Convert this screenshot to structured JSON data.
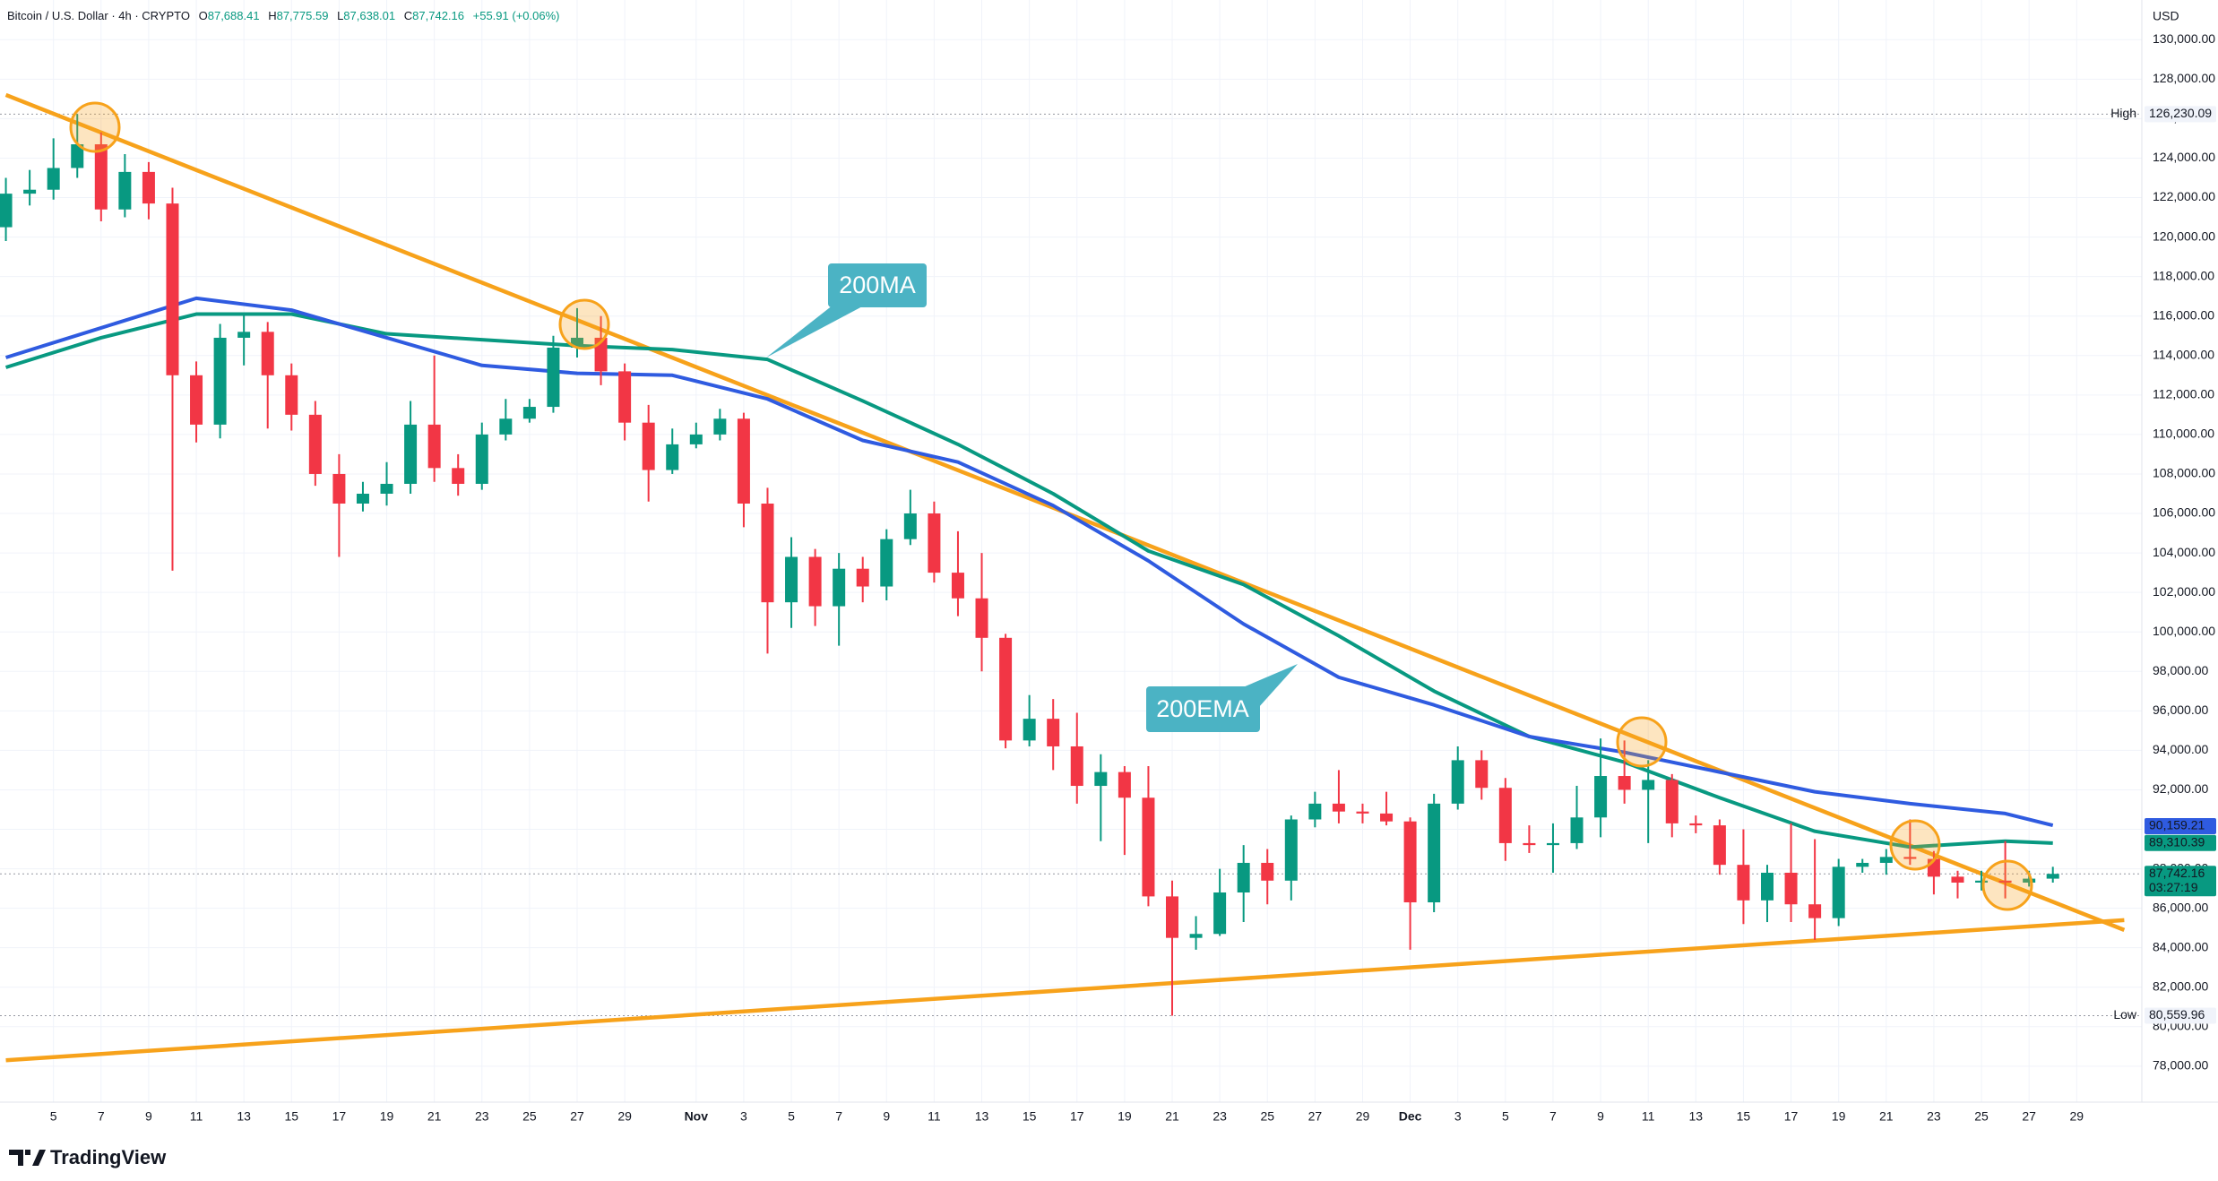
{
  "chart_data": {
    "type": "candlestick",
    "title": "Bitcoin / U.S. Dollar · 4h · CRYPTO",
    "ohlc_legend": [
      {
        "key": "O",
        "label": "87,688.41"
      },
      {
        "key": "H",
        "label": "87,775.59"
      },
      {
        "key": "L",
        "label": "87,638.01"
      },
      {
        "key": "C",
        "label": "87,742.16"
      }
    ],
    "change": "+55.91 (+0.06%)",
    "currency": "USD",
    "up_color": "#089981",
    "down_color": "#f23645",
    "grid": true,
    "xlim": [
      "Oct 2",
      "Dec 31"
    ],
    "ylim": [
      76360,
      132010
    ],
    "x": [
      "Oct 3",
      "Oct 4",
      "Oct 5",
      "Oct 6",
      "Oct 7",
      "Oct 8",
      "Oct 9",
      "Oct 10",
      "Oct 11",
      "Oct 12",
      "Oct 13",
      "Oct 14",
      "Oct 15",
      "Oct 16",
      "Oct 17",
      "Oct 18",
      "Oct 19",
      "Oct 20",
      "Oct 21",
      "Oct 22",
      "Oct 23",
      "Oct 24",
      "Oct 25",
      "Oct 26",
      "Oct 27",
      "Oct 28",
      "Oct 29",
      "Oct 30",
      "Oct 31",
      "Nov 1",
      "Nov 2",
      "Nov 3",
      "Nov 4",
      "Nov 5",
      "Nov 6",
      "Nov 7",
      "Nov 8",
      "Nov 9",
      "Nov 10",
      "Nov 11",
      "Nov 12",
      "Nov 13",
      "Nov 14",
      "Nov 15",
      "Nov 16",
      "Nov 17",
      "Nov 18",
      "Nov 19",
      "Nov 20",
      "Nov 21",
      "Nov 22",
      "Nov 23",
      "Nov 24",
      "Nov 25",
      "Nov 26",
      "Nov 27",
      "Nov 28",
      "Nov 29",
      "Nov 30",
      "Dec 1",
      "Dec 2",
      "Dec 3",
      "Dec 4",
      "Dec 5",
      "Dec 6",
      "Dec 7",
      "Dec 8",
      "Dec 9",
      "Dec 10",
      "Dec 11",
      "Dec 12",
      "Dec 13",
      "Dec 14",
      "Dec 15",
      "Dec 16",
      "Dec 17",
      "Dec 18",
      "Dec 19",
      "Dec 20",
      "Dec 21",
      "Dec 22",
      "Dec 23",
      "Dec 24",
      "Dec 25",
      "Dec 26",
      "Dec 27",
      "Dec 28"
    ],
    "open": [
      120500,
      122200,
      122400,
      123500,
      124700,
      121400,
      123300,
      121700,
      113000,
      110500,
      114900,
      115200,
      113000,
      111000,
      108000,
      106500,
      107000,
      107500,
      110500,
      108300,
      107500,
      110000,
      110800,
      111400,
      114400,
      114900,
      113200,
      110600,
      108200,
      109500,
      110000,
      110800,
      106500,
      101500,
      103800,
      101300,
      103200,
      102300,
      104700,
      106000,
      103000,
      101700,
      99700,
      94500,
      95600,
      94200,
      92200,
      92900,
      91600,
      86600,
      84500,
      84700,
      86800,
      88300,
      87400,
      90500,
      91300,
      90900,
      90800,
      90400,
      86300,
      91300,
      93500,
      92100,
      89300,
      89200,
      89300,
      90600,
      92700,
      92000,
      92500,
      90300,
      90200,
      88200,
      86400,
      87800,
      86200,
      85500,
      88100,
      88300,
      88600,
      88500,
      87600,
      87300,
      87400,
      87300,
      87500
    ],
    "high": [
      123000,
      123400,
      125000,
      126230.09,
      125300,
      124200,
      123800,
      122500,
      113700,
      115600,
      116100,
      115700,
      113600,
      111700,
      109000,
      107600,
      108600,
      111700,
      114000,
      109000,
      110600,
      111800,
      111800,
      115000,
      116400,
      116000,
      113600,
      111500,
      110300,
      110600,
      111300,
      111100,
      107300,
      104800,
      104200,
      104000,
      103800,
      105200,
      107200,
      106600,
      105100,
      104000,
      99900,
      96800,
      96600,
      95900,
      93800,
      93200,
      93200,
      87400,
      85600,
      88000,
      89200,
      89000,
      90700,
      91900,
      93000,
      91300,
      91900,
      90600,
      91800,
      94200,
      94000,
      92600,
      90200,
      90300,
      92200,
      94600,
      94500,
      93500,
      92800,
      90700,
      90500,
      90000,
      88200,
      90300,
      89500,
      88500,
      88500,
      89000,
      90500,
      88900,
      87900,
      87900,
      89400,
      87900,
      88100
    ],
    "low": [
      119800,
      121600,
      121900,
      123000,
      120800,
      121000,
      120900,
      103100,
      109600,
      109800,
      113500,
      110300,
      110200,
      107400,
      103800,
      106100,
      106400,
      107000,
      107600,
      106900,
      107200,
      109700,
      110600,
      111100,
      113900,
      112500,
      109700,
      106600,
      108000,
      109300,
      109700,
      105300,
      98900,
      100200,
      100300,
      99300,
      101500,
      101600,
      104400,
      102500,
      100800,
      98000,
      94100,
      94200,
      93000,
      91300,
      89400,
      88700,
      86100,
      80559.96,
      83900,
      84600,
      85300,
      86200,
      86400,
      90100,
      90300,
      90300,
      90200,
      83900,
      85800,
      91000,
      91500,
      88400,
      88800,
      87800,
      89000,
      89600,
      91300,
      89300,
      89600,
      89800,
      87700,
      85200,
      85300,
      85300,
      84400,
      85100,
      87800,
      87700,
      88200,
      86700,
      86500,
      86900,
      86500,
      87100,
      87300
    ],
    "close": [
      122200,
      122400,
      123500,
      124700,
      121400,
      123300,
      121700,
      113000,
      110500,
      114900,
      115200,
      113000,
      111000,
      108000,
      106500,
      107000,
      107500,
      110500,
      108300,
      107500,
      110000,
      110800,
      111400,
      114400,
      114900,
      113200,
      110600,
      108200,
      109500,
      110000,
      110800,
      106500,
      101500,
      103800,
      101300,
      103200,
      102300,
      104700,
      106000,
      103000,
      101700,
      99700,
      94500,
      95600,
      94200,
      92200,
      92900,
      91600,
      86600,
      84500,
      84700,
      86800,
      88300,
      87400,
      90500,
      91300,
      90900,
      90800,
      90400,
      86300,
      91300,
      93500,
      92100,
      89300,
      89200,
      89300,
      90600,
      92700,
      92000,
      92500,
      90300,
      90200,
      88200,
      86400,
      87800,
      86200,
      85500,
      88100,
      88300,
      88600,
      88500,
      87600,
      87300,
      87400,
      87300,
      87500,
      87742.16
    ],
    "series": [
      {
        "name": "200MA",
        "color": "#089981",
        "x": [
          "Oct 3",
          "Oct 7",
          "Oct 11",
          "Oct 15",
          "Oct 19",
          "Oct 23",
          "Oct 27",
          "Oct 31",
          "Nov 4",
          "Nov 8",
          "Nov 12",
          "Nov 16",
          "Nov 20",
          "Nov 24",
          "Nov 28",
          "Dec 2",
          "Dec 6",
          "Dec 10",
          "Dec 14",
          "Dec 18",
          "Dec 22",
          "Dec 26",
          "Dec 28"
        ],
        "values": [
          113400,
          114900,
          116100,
          116100,
          115100,
          114800,
          114500,
          114300,
          113800,
          111700,
          109500,
          107000,
          104100,
          102400,
          99800,
          97000,
          94700,
          93400,
          91600,
          89900,
          89100,
          89400,
          89300
        ],
        "last_label": {
          "value": 89310.39,
          "label": "89,310.39"
        }
      },
      {
        "name": "200EMA",
        "color": "#2f5be0",
        "x": [
          "Oct 3",
          "Oct 7",
          "Oct 11",
          "Oct 15",
          "Oct 19",
          "Oct 23",
          "Oct 27",
          "Oct 31",
          "Nov 4",
          "Nov 8",
          "Nov 12",
          "Nov 16",
          "Nov 20",
          "Nov 24",
          "Nov 28",
          "Dec 2",
          "Dec 6",
          "Dec 10",
          "Dec 14",
          "Dec 18",
          "Dec 22",
          "Dec 26",
          "Dec 28"
        ],
        "values": [
          113900,
          115400,
          116900,
          116300,
          114900,
          113500,
          113100,
          113000,
          111800,
          109700,
          108600,
          106400,
          103600,
          100400,
          97700,
          96300,
          94700,
          93900,
          92900,
          91900,
          91300,
          90800,
          90200
        ],
        "last_label": {
          "value": 90159.21,
          "label": "90,159.21"
        }
      }
    ],
    "trendlines": [
      {
        "color": "#f7a21b",
        "x": [
          "Oct 3",
          "Dec 31"
        ],
        "values": [
          127200,
          84900
        ]
      },
      {
        "color": "#f7a21b",
        "x": [
          "Oct 3",
          "Dec 31"
        ],
        "values": [
          78300,
          85400
        ]
      }
    ],
    "high_marker": {
      "name": "High",
      "value": 126230.09,
      "label": "126,230.09"
    },
    "low_marker": {
      "name": "Low",
      "value": 80559.96,
      "label": "80,559.96"
    },
    "last_price": {
      "value": 87742.16,
      "label": "87,742.16",
      "countdown": "03:27:19"
    },
    "yticks": [
      {
        "value": 78000,
        "label": "78,000.00"
      },
      {
        "value": 80000,
        "label": "80,000.00"
      },
      {
        "value": 82000,
        "label": "82,000.00"
      },
      {
        "value": 84000,
        "label": "84,000.00"
      },
      {
        "value": 86000,
        "label": "86,000.00"
      },
      {
        "value": 88000,
        "label": "88,000.00"
      },
      {
        "value": 90000,
        "label": "90,000.00"
      },
      {
        "value": 92000,
        "label": "92,000.00"
      },
      {
        "value": 94000,
        "label": "94,000.00"
      },
      {
        "value": 96000,
        "label": "96,000.00"
      },
      {
        "value": 98000,
        "label": "98,000.00"
      },
      {
        "value": 100000,
        "label": "100,000.00"
      },
      {
        "value": 102000,
        "label": "102,000.00"
      },
      {
        "value": 104000,
        "label": "104,000.00"
      },
      {
        "value": 106000,
        "label": "106,000.00"
      },
      {
        "value": 108000,
        "label": "108,000.00"
      },
      {
        "value": 110000,
        "label": "110,000.00"
      },
      {
        "value": 112000,
        "label": "112,000.00"
      },
      {
        "value": 114000,
        "label": "114,000.00"
      },
      {
        "value": 116000,
        "label": "116,000.00"
      },
      {
        "value": 118000,
        "label": "118,000.00"
      },
      {
        "value": 120000,
        "label": "120,000.00"
      },
      {
        "value": 122000,
        "label": "122,000.00"
      },
      {
        "value": 124000,
        "label": "124,000.00"
      },
      {
        "value": 126000,
        "label": "126,000.00"
      },
      {
        "value": 128000,
        "label": "128,000.00"
      },
      {
        "value": 130000,
        "label": "130,000.00"
      }
    ],
    "xticks": [
      {
        "value": "Oct 5",
        "label": "5"
      },
      {
        "value": "Oct 7",
        "label": "7"
      },
      {
        "value": "Oct 9",
        "label": "9"
      },
      {
        "value": "Oct 11",
        "label": "11"
      },
      {
        "value": "Oct 13",
        "label": "13"
      },
      {
        "value": "Oct 15",
        "label": "15"
      },
      {
        "value": "Oct 17",
        "label": "17"
      },
      {
        "value": "Oct 19",
        "label": "19"
      },
      {
        "value": "Oct 21",
        "label": "21"
      },
      {
        "value": "Oct 23",
        "label": "23"
      },
      {
        "value": "Oct 25",
        "label": "25"
      },
      {
        "value": "Oct 27",
        "label": "27"
      },
      {
        "value": "Oct 29",
        "label": "29"
      },
      {
        "value": "Nov 1",
        "label": "Nov"
      },
      {
        "value": "Nov 3",
        "label": "3"
      },
      {
        "value": "Nov 5",
        "label": "5"
      },
      {
        "value": "Nov 7",
        "label": "7"
      },
      {
        "value": "Nov 9",
        "label": "9"
      },
      {
        "value": "Nov 11",
        "label": "11"
      },
      {
        "value": "Nov 13",
        "label": "13"
      },
      {
        "value": "Nov 15",
        "label": "15"
      },
      {
        "value": "Nov 17",
        "label": "17"
      },
      {
        "value": "Nov 19",
        "label": "19"
      },
      {
        "value": "Nov 21",
        "label": "21"
      },
      {
        "value": "Nov 23",
        "label": "23"
      },
      {
        "value": "Nov 25",
        "label": "25"
      },
      {
        "value": "Nov 27",
        "label": "27"
      },
      {
        "value": "Nov 29",
        "label": "29"
      },
      {
        "value": "Dec 1",
        "label": "Dec"
      },
      {
        "value": "Dec 3",
        "label": "3"
      },
      {
        "value": "Dec 5",
        "label": "5"
      },
      {
        "value": "Dec 7",
        "label": "7"
      },
      {
        "value": "Dec 9",
        "label": "9"
      },
      {
        "value": "Dec 11",
        "label": "11"
      },
      {
        "value": "Dec 13",
        "label": "13"
      },
      {
        "value": "Dec 15",
        "label": "15"
      },
      {
        "value": "Dec 17",
        "label": "17"
      },
      {
        "value": "Dec 19",
        "label": "19"
      },
      {
        "value": "Dec 21",
        "label": "21"
      },
      {
        "value": "Dec 23",
        "label": "23"
      },
      {
        "value": "Dec 25",
        "label": "25"
      },
      {
        "value": "Dec 27",
        "label": "27"
      },
      {
        "value": "Dec 29",
        "label": "29"
      }
    ]
  },
  "branding": "TradingView"
}
